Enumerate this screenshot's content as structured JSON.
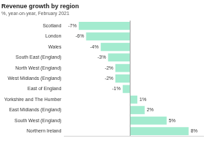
{
  "chart_data": {
    "type": "bar",
    "orientation": "horizontal",
    "title": "Revenue growth by region",
    "subtitle": "%, year-on-year, February 2021",
    "categories": [
      "Scotland",
      "London",
      "Wales",
      "South East (England)",
      "North West (England)",
      "West Midlands (England)",
      "East of England",
      "Yorkshire and The Humber",
      "East Midlands (England)",
      "South West (England)",
      "Northern Ireland"
    ],
    "values": [
      -7,
      -6,
      -4,
      -3,
      -2,
      -2,
      -1,
      1,
      2,
      5,
      8
    ],
    "value_labels": [
      "-7%",
      "-6%",
      "-4%",
      "-3%",
      "-2%",
      "-2%",
      "-1%",
      "1%",
      "2%",
      "5%",
      "8%"
    ],
    "color": "#a3ebcf",
    "xlim": [
      -9,
      10
    ],
    "xticks": [
      0
    ],
    "grid": true,
    "data_labels": true,
    "tick_labels": "y"
  }
}
